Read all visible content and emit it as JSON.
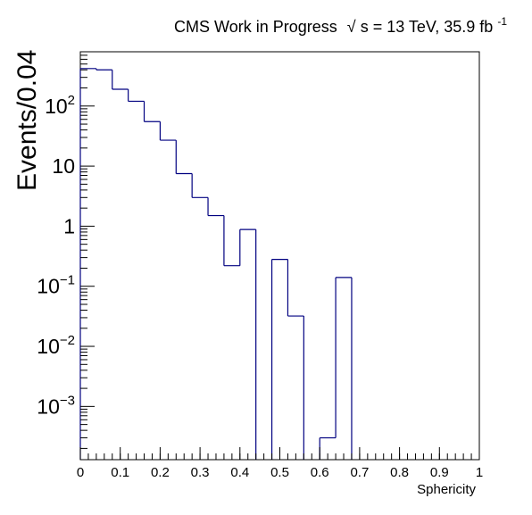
{
  "chart_data": {
    "type": "bar",
    "title": "CMS Work in Progress",
    "title_suffix": "s = 13 TeV, 35.9 fb",
    "title_sqrt": "√",
    "title_superscript": "-1",
    "xlabel": "Sphericity",
    "ylabel": "Events/0.04",
    "y_scale": "log",
    "xlim": [
      0,
      1
    ],
    "ylim": [
      0.00013,
      800
    ],
    "grid": false,
    "legend": "none",
    "line_color": "#000080",
    "bin_width": 0.04,
    "bins": [
      {
        "x_low": 0.0,
        "x_high": 0.04,
        "value": 420
      },
      {
        "x_low": 0.04,
        "x_high": 0.08,
        "value": 400
      },
      {
        "x_low": 0.08,
        "x_high": 0.12,
        "value": 190
      },
      {
        "x_low": 0.12,
        "x_high": 0.16,
        "value": 120
      },
      {
        "x_low": 0.16,
        "x_high": 0.2,
        "value": 55
      },
      {
        "x_low": 0.2,
        "x_high": 0.24,
        "value": 27
      },
      {
        "x_low": 0.24,
        "x_high": 0.28,
        "value": 7.5
      },
      {
        "x_low": 0.28,
        "x_high": 0.32,
        "value": 3.0
      },
      {
        "x_low": 0.32,
        "x_high": 0.36,
        "value": 1.5
      },
      {
        "x_low": 0.36,
        "x_high": 0.4,
        "value": 0.22
      },
      {
        "x_low": 0.4,
        "x_high": 0.44,
        "value": 0.88
      },
      {
        "x_low": 0.44,
        "x_high": 0.48,
        "value": 0
      },
      {
        "x_low": 0.48,
        "x_high": 0.52,
        "value": 0.28
      },
      {
        "x_low": 0.52,
        "x_high": 0.56,
        "value": 0.032
      },
      {
        "x_low": 0.56,
        "x_high": 0.6,
        "value": 0
      },
      {
        "x_low": 0.6,
        "x_high": 0.64,
        "value": 0.0003
      },
      {
        "x_low": 0.64,
        "x_high": 0.68,
        "value": 0.14
      },
      {
        "x_low": 0.68,
        "x_high": 0.72,
        "value": 0
      }
    ],
    "x_ticks": [
      {
        "value": 0,
        "label": "0"
      },
      {
        "value": 0.1,
        "label": "0.1"
      },
      {
        "value": 0.2,
        "label": "0.2"
      },
      {
        "value": 0.3,
        "label": "0.3"
      },
      {
        "value": 0.4,
        "label": "0.4"
      },
      {
        "value": 0.5,
        "label": "0.5"
      },
      {
        "value": 0.6,
        "label": "0.6"
      },
      {
        "value": 0.7,
        "label": "0.7"
      },
      {
        "value": 0.8,
        "label": "0.8"
      },
      {
        "value": 0.9,
        "label": "0.9"
      },
      {
        "value": 1,
        "label": "1"
      }
    ],
    "y_ticks": [
      {
        "value": 0.001,
        "base": "10",
        "exponent": "−3"
      },
      {
        "value": 0.01,
        "base": "10",
        "exponent": "−2"
      },
      {
        "value": 0.1,
        "base": "10",
        "exponent": "−1"
      },
      {
        "value": 1,
        "base": "1",
        "exponent": ""
      },
      {
        "value": 10,
        "base": "10",
        "exponent": ""
      },
      {
        "value": 100,
        "base": "10",
        "exponent": "2"
      }
    ]
  }
}
